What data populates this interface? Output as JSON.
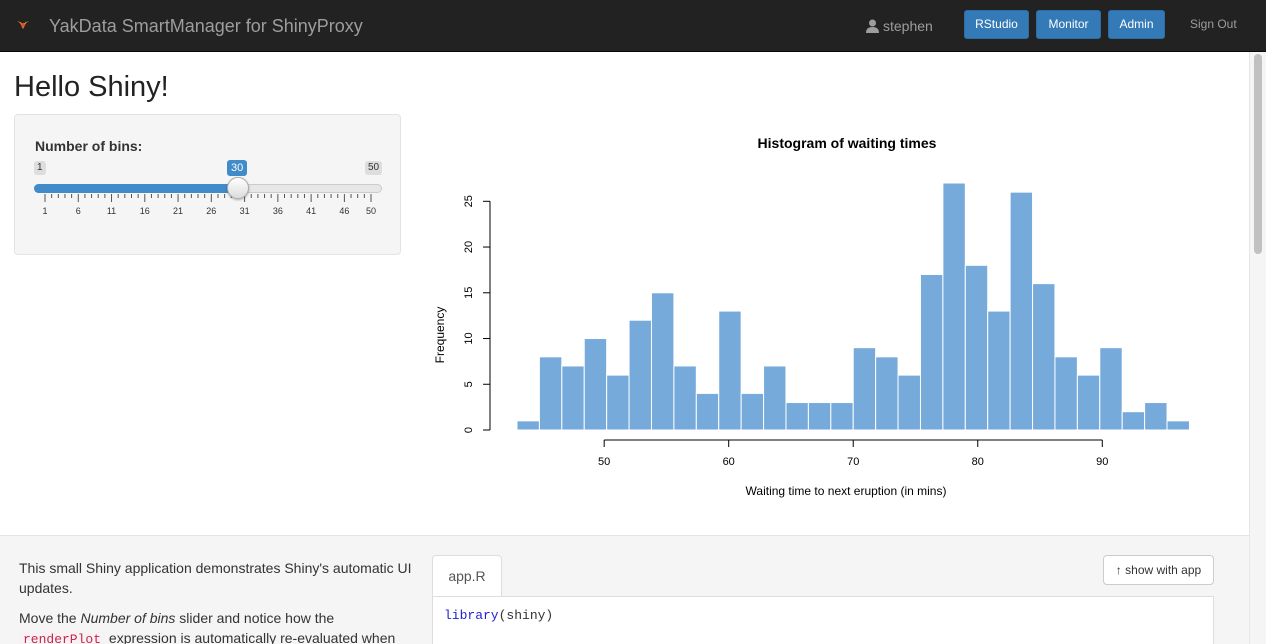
{
  "navbar": {
    "brand": "YakData SmartManager for ShinyProxy",
    "user": "stephen",
    "buttons": [
      "RStudio",
      "Monitor",
      "Admin"
    ],
    "sign_out": "Sign Out"
  },
  "page": {
    "title": "Hello Shiny!"
  },
  "slider": {
    "label": "Number of bins:",
    "min": 1,
    "max": 50,
    "value": 30,
    "tick_labels": [
      "1",
      "6",
      "11",
      "16",
      "21",
      "26",
      "31",
      "36",
      "41",
      "46",
      "50"
    ]
  },
  "chart_data": {
    "type": "bar",
    "title": "Histogram of waiting times",
    "xlabel": "Waiting time to next eruption (in mins)",
    "ylabel": "Frequency",
    "bar_color": "#75aadb",
    "bins_start": 43,
    "bin_width": 1.8,
    "values": [
      1,
      8,
      7,
      10,
      6,
      12,
      15,
      7,
      4,
      13,
      4,
      7,
      3,
      3,
      3,
      9,
      8,
      6,
      17,
      27,
      18,
      13,
      26,
      16,
      8,
      6,
      9,
      2,
      3,
      1
    ],
    "xticks": [
      "50",
      "60",
      "70",
      "80",
      "90"
    ],
    "yticks": [
      "0",
      "5",
      "10",
      "15",
      "20",
      "25"
    ],
    "xlim": [
      43,
      96
    ],
    "ylim": [
      0,
      27
    ]
  },
  "bottom": {
    "description1": "This small Shiny application demonstrates Shiny's automatic UI updates.",
    "description2_prefix": "Move the ",
    "description2_em": "Number of bins",
    "description2_middle": " slider and notice how the ",
    "description2_code": "renderPlot",
    "description2_suffix": " expression is automatically re-evaluated when",
    "tab_label": "app.R",
    "show_app_label": "show with app",
    "code_fn": "library",
    "code_arg": "(shiny)"
  }
}
